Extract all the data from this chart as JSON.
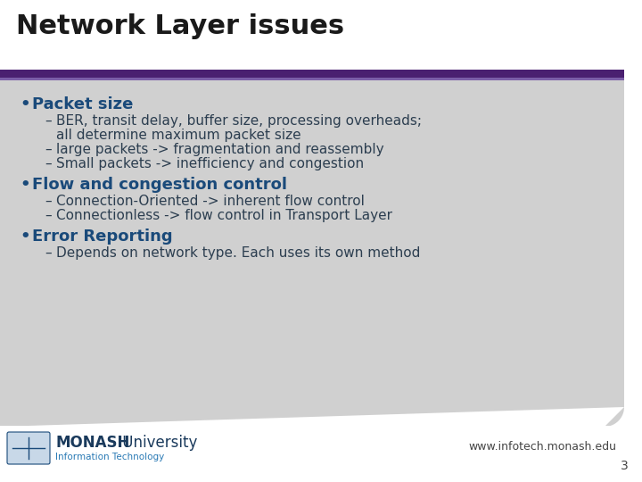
{
  "title": "Network Layer issues",
  "title_color": "#1a1a1a",
  "title_fontsize": 22,
  "bg_color": "#ffffff",
  "content_bg_color": "#d0d0d0",
  "header_bar_color1": "#4a2070",
  "header_bar_color2": "#7b5ea7",
  "bullet_color": "#1a4a7a",
  "bullet_fontsize": 13,
  "sub_color": "#2c3e50",
  "sub_fontsize": 11,
  "footer_text": "www.infotech.monash.edu",
  "page_number": "3",
  "bullets": [
    {
      "header": "Packet size",
      "subs": [
        [
          "BER, transit delay, buffer size, processing overheads;",
          "all determine maximum packet size"
        ],
        [
          "large packets -> fragmentation and reassembly"
        ],
        [
          "Small packets -> inefficiency and congestion"
        ]
      ]
    },
    {
      "header": "Flow and congestion control",
      "subs": [
        [
          "Connection-Oriented -> inherent flow control"
        ],
        [
          "Connectionless -> flow control in Transport Layer"
        ]
      ]
    },
    {
      "header": "Error Reporting",
      "subs": [
        [
          "Depends on network type. Each uses its own method"
        ]
      ]
    }
  ]
}
